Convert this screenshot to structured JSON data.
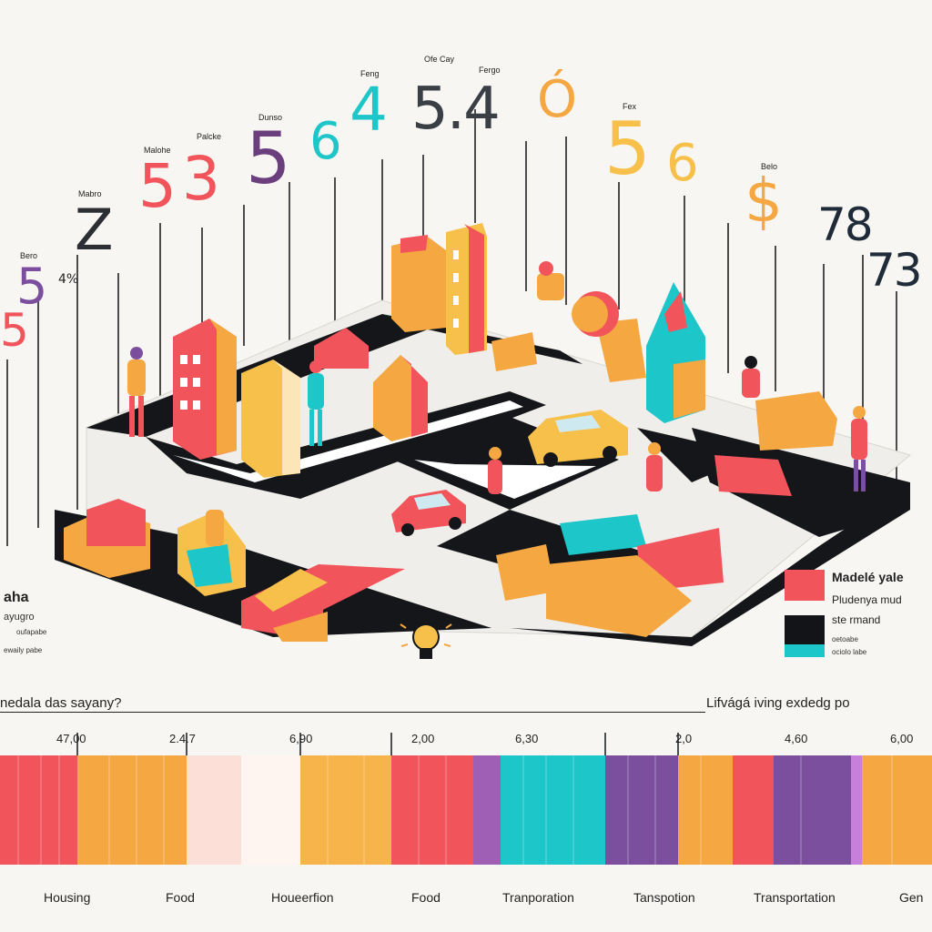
{
  "top_labels": [
    {
      "cap": "Bero",
      "value": "5"
    },
    {
      "cap": "",
      "value": "5"
    },
    {
      "cap": "",
      "value": "4%"
    },
    {
      "cap": "Mabro",
      "value": "Z"
    },
    {
      "cap": "Malohe",
      "value": "5"
    },
    {
      "cap": "Palcke",
      "value": "3"
    },
    {
      "cap": "Dunso",
      "value": "5"
    },
    {
      "cap": "",
      "value": "6"
    },
    {
      "cap": "Feng",
      "value": "4"
    },
    {
      "cap": "Ofe Cay",
      "value": "5.4"
    },
    {
      "cap": "Fergo",
      "value": "Ó"
    },
    {
      "cap": "Fex",
      "value": "5"
    },
    {
      "cap": "",
      "value": "6"
    },
    {
      "cap": "Belo",
      "value": "$"
    },
    {
      "cap": "",
      "value": "78"
    },
    {
      "cap": "",
      "value": "73"
    }
  ],
  "legend": {
    "left_title": "aha",
    "left_line1": "ayugro",
    "left_line2": "oufapabe",
    "left_line3": "ewaily pabe",
    "item1_title": "Madelé yale",
    "item1_sub": "Pludenya mud",
    "item2_title": "ste rmand",
    "item2_sub1": "oetoabe",
    "item2_sub2": "ociolo labe",
    "swatch1": "#f2545b",
    "swatch2": "#121418",
    "swatch3": "#1dc6c9"
  },
  "axis": {
    "left_heading": "nedala das sayany?",
    "right_heading": "Lifvágá iving exdedg po",
    "ticks": [
      "47,00",
      "2.4.7",
      "6,90",
      "2,00",
      "6,30",
      "2,0",
      "4,60",
      "6,00"
    ],
    "categories": [
      "Housing",
      "Food",
      "Houeerfion",
      "Food",
      "Tranporation",
      "Tanspotion",
      "Transportation",
      "Gen"
    ]
  },
  "colors": {
    "red": "#f2545b",
    "orange": "#f5a742",
    "yellow": "#f7c04a",
    "purple": "#7c4f9e",
    "teal": "#1dc6c9",
    "dark": "#15171b"
  }
}
